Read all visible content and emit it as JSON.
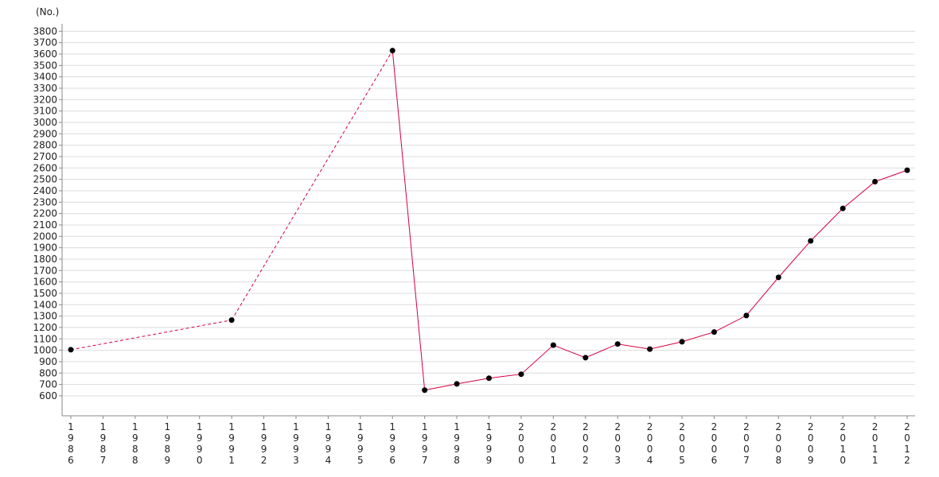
{
  "chart_data": {
    "type": "line",
    "y_label": "(No.)",
    "categories": [
      "1986",
      "1987",
      "1988",
      "1989",
      "1990",
      "1991",
      "1992",
      "1993",
      "1994",
      "1995",
      "1996",
      "1997",
      "1998",
      "1999",
      "2000",
      "2001",
      "2002",
      "2003",
      "2004",
      "2005",
      "2006",
      "2007",
      "2008",
      "2009",
      "2010",
      "2011",
      "2012"
    ],
    "series": [
      {
        "color": "#d6003f",
        "values": [
          1005,
          null,
          null,
          null,
          null,
          1265,
          null,
          null,
          null,
          null,
          3630,
          650,
          705,
          755,
          790,
          1045,
          935,
          1055,
          1010,
          1075,
          1160,
          1305,
          1640,
          1960,
          2245,
          2480,
          2580
        ]
      }
    ],
    "ylim": [
      425,
      3865
    ],
    "yticks": [
      600,
      700,
      800,
      900,
      1000,
      1100,
      1200,
      1300,
      1400,
      1500,
      1600,
      1700,
      1800,
      1900,
      2000,
      2100,
      2200,
      2300,
      2400,
      2500,
      2600,
      2700,
      2800,
      2900,
      3000,
      3100,
      3200,
      3300,
      3400,
      3500,
      3600,
      3700,
      3800
    ],
    "grid": true
  }
}
